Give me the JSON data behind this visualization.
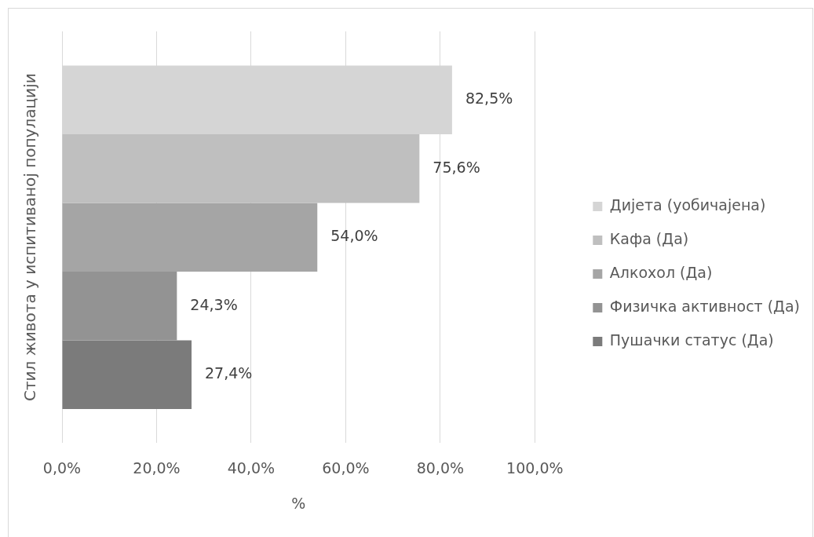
{
  "chart_data": {
    "type": "bar",
    "orientation": "horizontal",
    "ylabel": "Стил живота у испитиваној популацији",
    "xlabel": "%",
    "categories": [
      null
    ],
    "series": [
      {
        "name": "Дијета (уобичајена)",
        "color": "#d5d5d5",
        "values": [
          82.5
        ],
        "value_labels": [
          "82,5%"
        ]
      },
      {
        "name": "Кафа (Да)",
        "color": "#bfbfbf",
        "values": [
          75.6
        ],
        "value_labels": [
          "75,6%"
        ]
      },
      {
        "name": "Алкохол (Да)",
        "color": "#a5a5a5",
        "values": [
          54.0
        ],
        "value_labels": [
          "54,0%"
        ]
      },
      {
        "name": "Физичка активност (Да)",
        "color": "#939393",
        "values": [
          24.3
        ],
        "value_labels": [
          "24,3%"
        ]
      },
      {
        "name": "Пушачки статус (Да)",
        "color": "#7b7b7b",
        "values": [
          27.4
        ],
        "value_labels": [
          "27,4%"
        ]
      }
    ],
    "xlim": [
      0,
      100
    ],
    "xticks": [
      {
        "value": 0,
        "label": "0,0%"
      },
      {
        "value": 20,
        "label": "20,0%"
      },
      {
        "value": 40,
        "label": "40,0%"
      },
      {
        "value": 60,
        "label": "60,0%"
      },
      {
        "value": 80,
        "label": "80,0%"
      },
      {
        "value": 100,
        "label": "100,0%"
      }
    ],
    "grid": "x",
    "legend": "right"
  }
}
